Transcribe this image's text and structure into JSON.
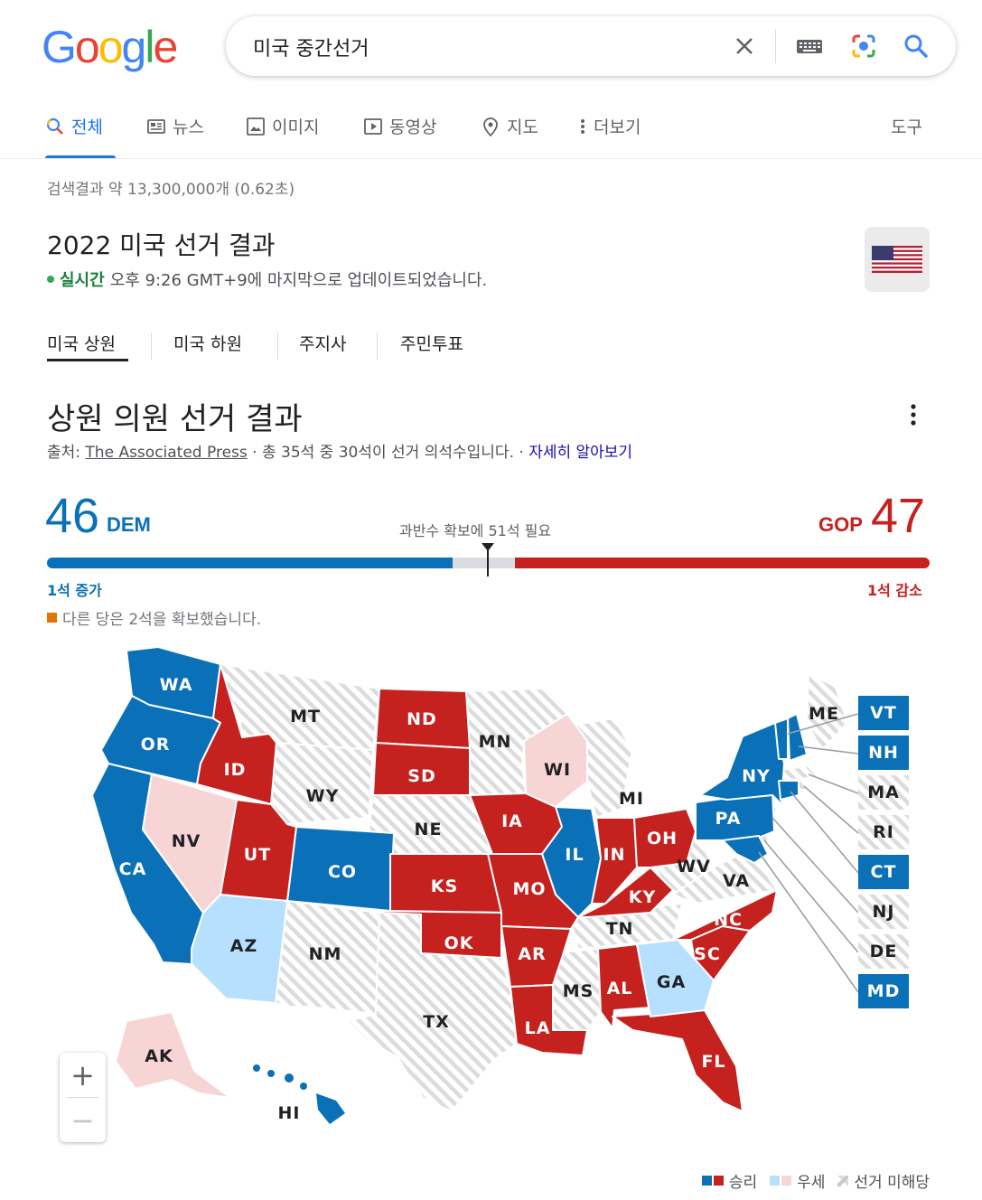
{
  "logo": "Google",
  "search": {
    "value": "미국 중간선거"
  },
  "tabs": [
    {
      "label": "전체",
      "icon": "search-icon"
    },
    {
      "label": "뉴스",
      "icon": "news-icon"
    },
    {
      "label": "이미지",
      "icon": "image-icon"
    },
    {
      "label": "동영상",
      "icon": "video-icon"
    },
    {
      "label": "지도",
      "icon": "location-pin-icon"
    },
    {
      "label": "더보기",
      "icon": "more-vert-icon"
    }
  ],
  "tools_label": "도구",
  "result_stats": "검색결과 약 13,300,000개 (0.62초)",
  "election": {
    "title": "2022 미국 선거 결과",
    "live_label": "실시간",
    "live_text": "오후 9:26 GMT+9에 마지막으로 업데이트되었습니다.",
    "sub_tabs": [
      "미국 상원",
      "미국 하원",
      "주지사",
      "주민투표"
    ]
  },
  "senate": {
    "title": "상원 의원 선거 결과",
    "source_prefix": "출처:",
    "source_name": "The Associated Press",
    "source_suffix": "· 총 35석 중 30석이 선거 의석수입니다. ·",
    "learn_more": "자세히 알아보기",
    "dem_seats": "46",
    "dem_label": "DEM",
    "gop_seats": "47",
    "gop_label": "GOP",
    "majority_text": "과반수 확보에 51석 필요",
    "dem_change": "1석 증가",
    "gop_change": "1석 감소",
    "other_text": "다른 당은 2석을 확보했습니다.",
    "total_seats": 100,
    "dem_count": 46,
    "gop_count": 47
  },
  "colors": {
    "dem_win": "#0a70b8",
    "gop_win": "#c5221f",
    "dem_lean": "#b6e0fd",
    "gop_lean": "#f8d5d5",
    "no_race": "#e0e0e0",
    "other": "#e37400"
  },
  "states": {
    "WA": "WA",
    "OR": "OR",
    "CA": "CA",
    "NV": "NV",
    "ID": "ID",
    "MT": "MT",
    "WY": "WY",
    "UT": "UT",
    "AZ": "AZ",
    "CO": "CO",
    "NM": "NM",
    "ND": "ND",
    "SD": "SD",
    "NE": "NE",
    "KS": "KS",
    "OK": "OK",
    "TX": "TX",
    "MN": "MN",
    "IA": "IA",
    "MO": "MO",
    "AR": "AR",
    "LA": "LA",
    "WI": "WI",
    "IL": "IL",
    "MS": "MS",
    "MI": "MI",
    "IN": "IN",
    "KY": "KY",
    "TN": "TN",
    "AL": "AL",
    "GA": "GA",
    "FL": "FL",
    "OH": "OH",
    "WV": "WV",
    "VA": "VA",
    "NC": "NC",
    "SC": "SC",
    "PA": "PA",
    "NY": "NY",
    "ME": "ME",
    "AK": "AK",
    "HI": "HI"
  },
  "small_states": [
    "VT",
    "NH",
    "MA",
    "RI",
    "CT",
    "NJ",
    "DE",
    "MD"
  ],
  "zoom": {
    "in": "+",
    "out": "−"
  },
  "legend": {
    "win": "승리",
    "lean": "우세",
    "no_race": "선거 미해당"
  }
}
